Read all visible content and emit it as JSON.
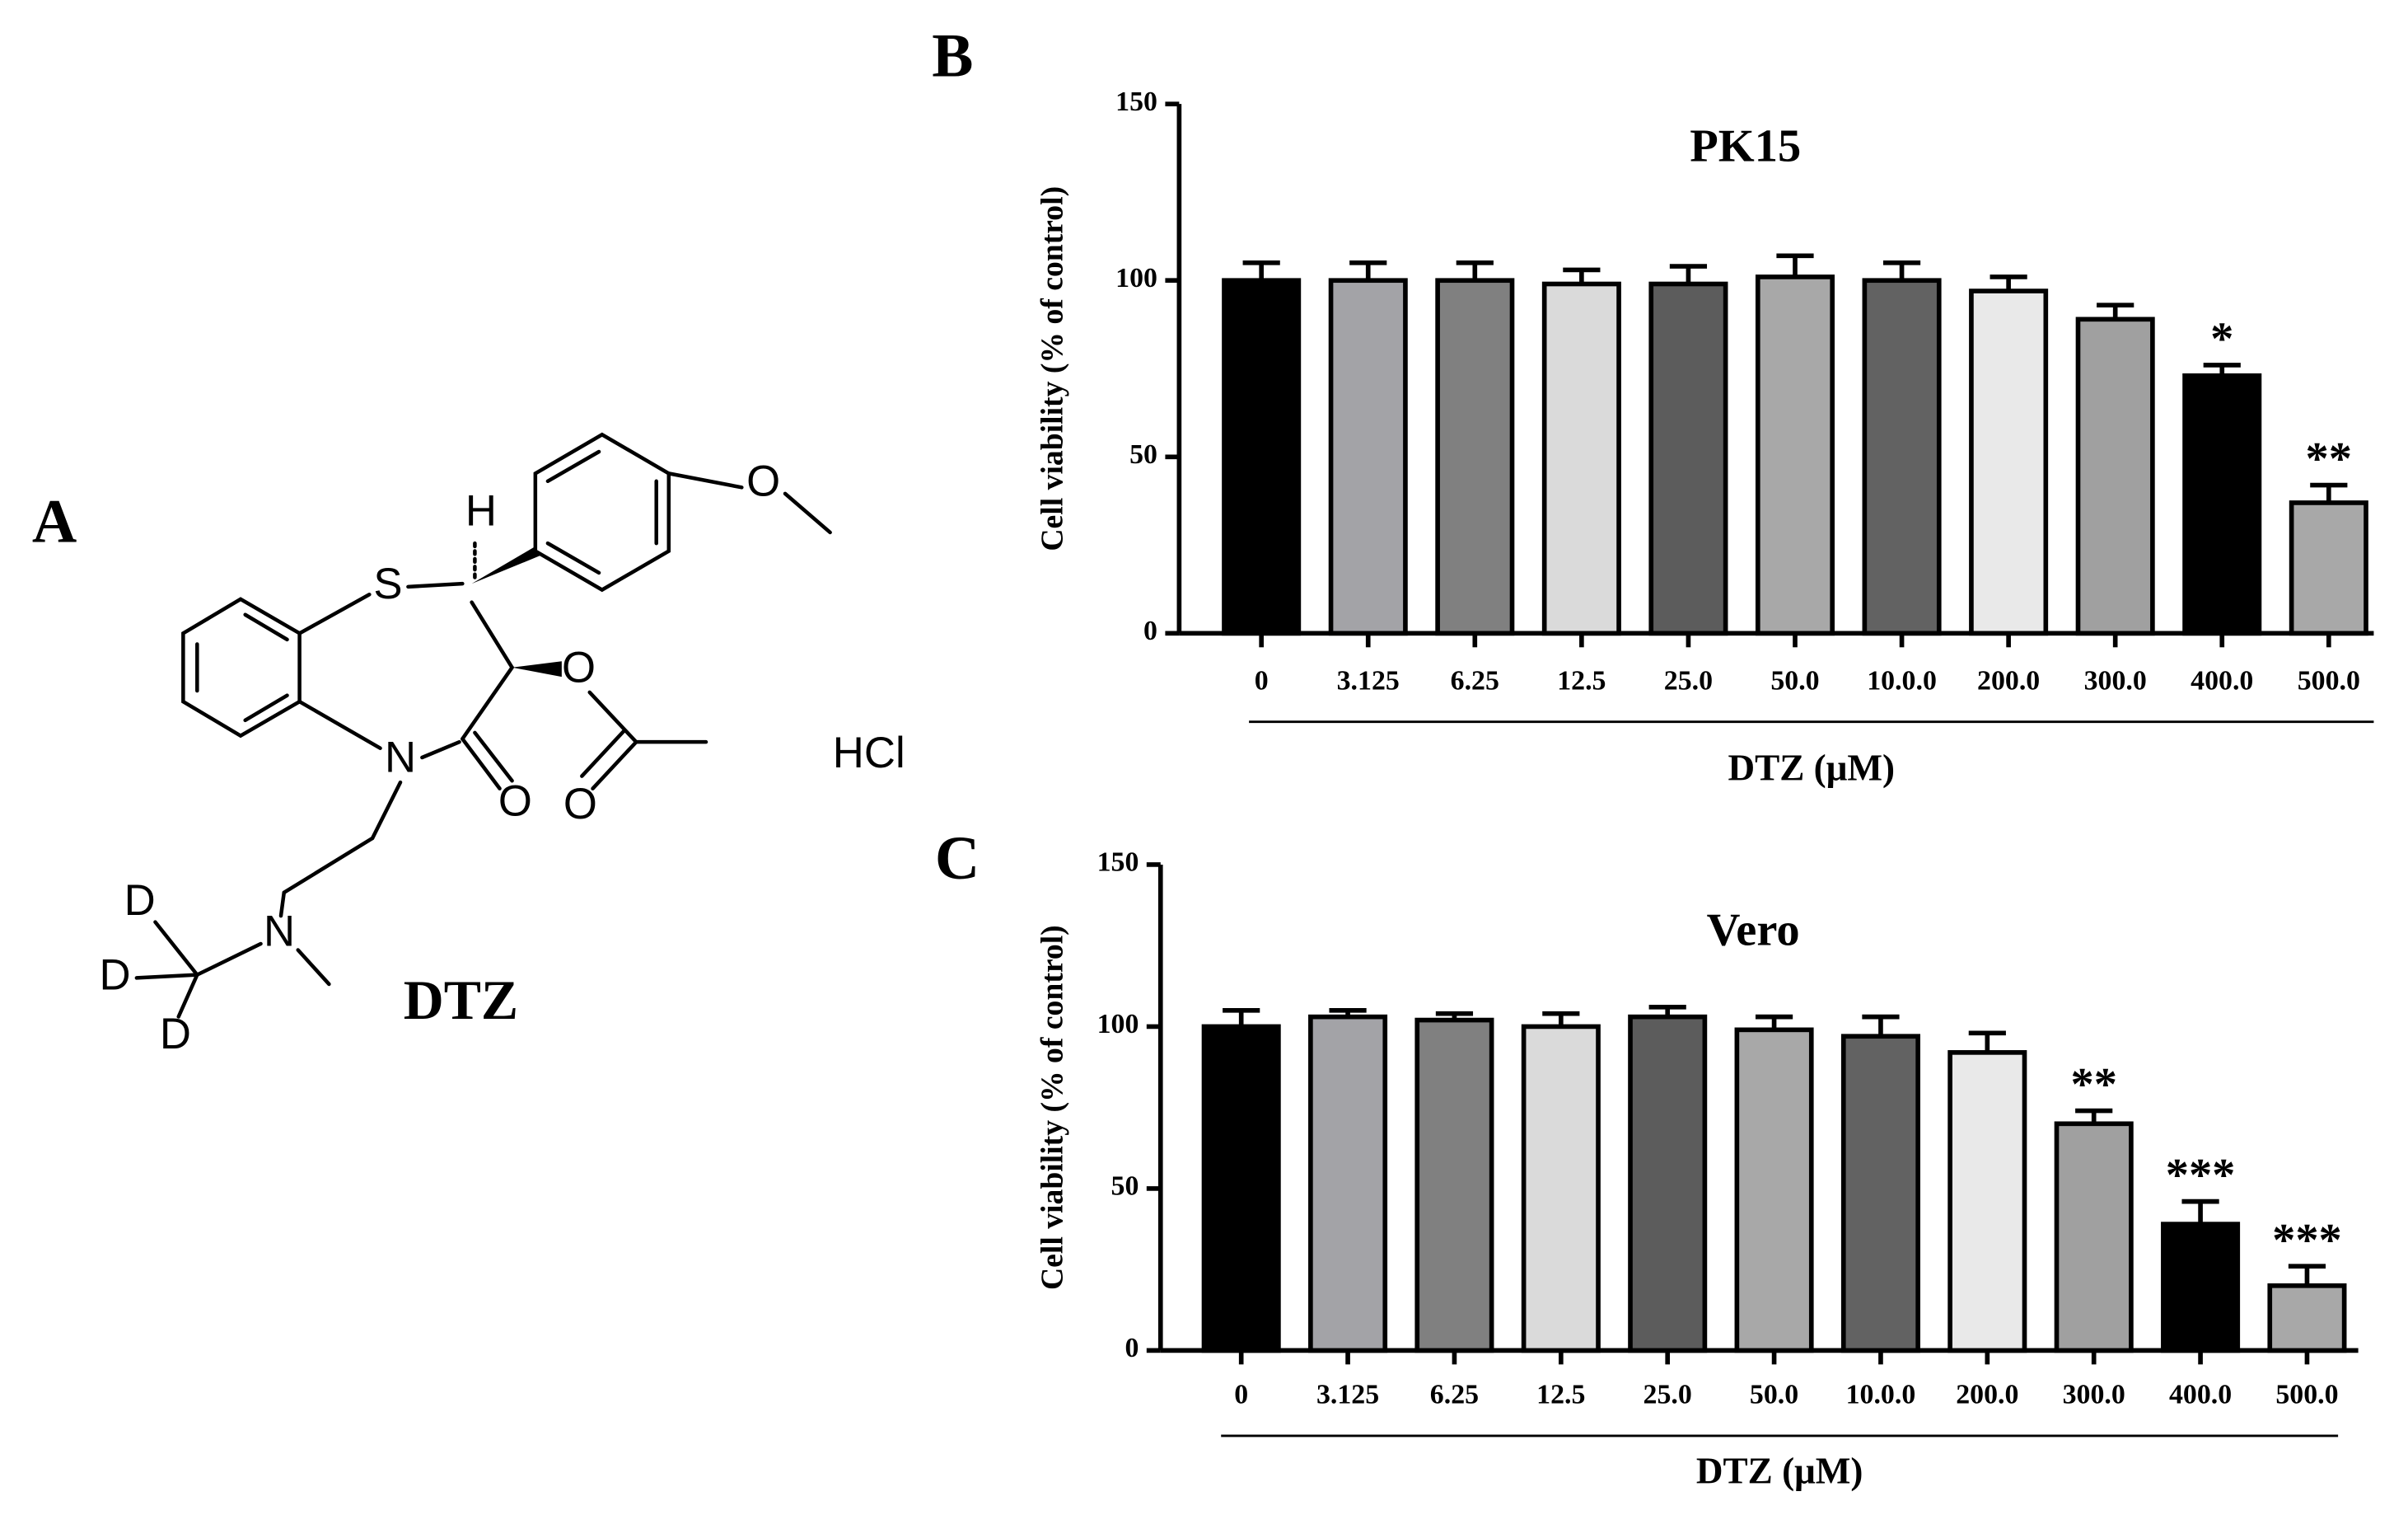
{
  "panel_labels": [
    "A",
    "B",
    "C"
  ],
  "structure": {
    "name": "DTZ",
    "salt": "HCl",
    "atoms": [
      "S",
      "H",
      "O",
      "O",
      "O",
      "N",
      "O",
      "N",
      "D",
      "D",
      "D"
    ]
  },
  "chart_data": [
    {
      "type": "bar",
      "title": "PK15",
      "x_label": "DTZ (μM)",
      "y_label": "Cell viability (% of control)",
      "categories": [
        "0",
        "3.125",
        "6.25",
        "12.5",
        "25.0",
        "50.0",
        "10.0.0",
        "200.0",
        "300.0",
        "400.0",
        "500.0"
      ],
      "values": [
        100,
        100,
        100,
        99,
        99,
        101,
        100,
        97,
        89,
        73,
        37
      ],
      "errors": [
        5,
        5,
        5,
        4,
        5,
        6,
        5,
        4,
        4,
        3,
        5
      ],
      "significance": [
        null,
        null,
        null,
        null,
        null,
        null,
        null,
        null,
        null,
        "*",
        "**"
      ],
      "colors": [
        "#000000",
        "#a3a3a7",
        "#808080",
        "#dadada",
        "#5c5c5c",
        "#a8a8a8",
        "#626262",
        "#e9e9e9",
        "#a0a0a0",
        "#000000",
        "#a8a8a8"
      ],
      "ylim": [
        0,
        150
      ],
      "yticks": [
        0,
        50,
        100,
        150
      ]
    },
    {
      "type": "bar",
      "title": "Vero",
      "x_label": "DTZ (μM)",
      "y_label": "Cell viability (% of control)",
      "categories": [
        "0",
        "3.125",
        "6.25",
        "12.5",
        "25.0",
        "50.0",
        "10.0.0",
        "200.0",
        "300.0",
        "400.0",
        "500.0"
      ],
      "values": [
        100,
        103,
        102,
        100,
        103,
        99,
        97,
        92,
        70,
        39,
        20
      ],
      "errors": [
        5,
        2,
        2,
        4,
        3,
        4,
        6,
        6,
        4,
        7,
        6
      ],
      "significance": [
        null,
        null,
        null,
        null,
        null,
        null,
        null,
        null,
        "**",
        "***",
        "***"
      ],
      "colors": [
        "#000000",
        "#a3a3a7",
        "#808080",
        "#dadada",
        "#5c5c5c",
        "#a8a8a8",
        "#626262",
        "#e9e9e9",
        "#a0a0a0",
        "#000000",
        "#a8a8a8"
      ],
      "ylim": [
        0,
        150
      ],
      "yticks": [
        0,
        50,
        100,
        150
      ]
    }
  ]
}
